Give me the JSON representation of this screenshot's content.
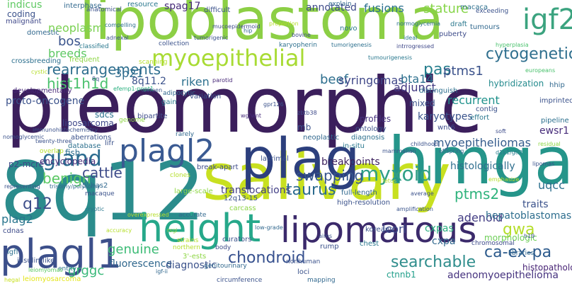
{
  "cloud": {
    "words": [
      {
        "text": "pleomorphic",
        "color": "#3b1f5c"
      },
      {
        "text": "lipoblastoma",
        "color": "#8ccf45"
      },
      {
        "text": "8q12",
        "color": "#2b8c8c"
      },
      {
        "text": "salivary",
        "color": "#c8e020"
      },
      {
        "text": "hmga2",
        "color": "#25958a"
      },
      {
        "text": "plag",
        "color": "#2c3f7d"
      },
      {
        "text": "height",
        "color": "#26a88a"
      },
      {
        "text": "lipomatous",
        "color": "#3b2a6b"
      },
      {
        "text": "plagl1",
        "color": "#3c4f8a"
      },
      {
        "text": "myoepithelial",
        "color": "#a8db34"
      },
      {
        "text": "igf2",
        "color": "#3ba37f"
      },
      {
        "text": "plagl2",
        "color": "#3a5a92"
      },
      {
        "text": "cytogenetic",
        "color": "#2f6f8e"
      },
      {
        "text": "gland",
        "color": "#2a6a8e"
      },
      {
        "text": "myxoid",
        "color": "#2f9f86"
      },
      {
        "text": "ca-ex-pa",
        "color": "#2c5a8c"
      },
      {
        "text": "chondroid",
        "color": "#36508e"
      },
      {
        "text": "searchable",
        "color": "#2f8d8c"
      },
      {
        "text": "taurus",
        "color": "#2b6a8e"
      },
      {
        "text": "swapping",
        "color": "#35558d"
      },
      {
        "text": "gwa",
        "color": "#b5de2b"
      },
      {
        "text": "benign",
        "color": "#5ac864"
      },
      {
        "text": "rearrangements",
        "color": "#2e6e8e"
      },
      {
        "text": "hist1h1d",
        "color": "#4ac16d"
      },
      {
        "text": "bos",
        "color": "#3a548c"
      },
      {
        "text": "neoplasm",
        "color": "#7ad151"
      },
      {
        "text": "breeds",
        "color": "#5dc863"
      },
      {
        "text": "spag17",
        "color": "#472a7a"
      },
      {
        "text": "pas",
        "color": "#277f8e"
      },
      {
        "text": "ptms1",
        "color": "#3b528b"
      },
      {
        "text": "stature",
        "color": "#86d549"
      },
      {
        "text": "fusions",
        "color": "#2c718e"
      },
      {
        "text": "annotated",
        "color": "#3e4a89"
      },
      {
        "text": "indicus",
        "color": "#5ec962"
      },
      {
        "text": "riken",
        "color": "#2d708e"
      },
      {
        "text": "8q11.2",
        "color": "#3b528b"
      },
      {
        "text": "3p21",
        "color": "#2f6b8e"
      },
      {
        "text": "beef",
        "color": "#2e6f8e"
      },
      {
        "text": "syringomas",
        "color": "#3f4788"
      },
      {
        "text": "bta14",
        "color": "#2d708e"
      },
      {
        "text": "adjunct",
        "color": "#443a83"
      },
      {
        "text": "recurrent",
        "color": "#20928c"
      },
      {
        "text": "myoepitheliomas",
        "color": "#365d8d"
      },
      {
        "text": "cattle",
        "color": "#3e4c8a"
      },
      {
        "text": "q12",
        "color": "#3d4e8a"
      },
      {
        "text": "plag2",
        "color": "#2a768e"
      },
      {
        "text": "grggc",
        "color": "#37b878"
      },
      {
        "text": "genuine",
        "color": "#3bbb75"
      },
      {
        "text": "fluorescence",
        "color": "#31688e"
      },
      {
        "text": "diagnostic",
        "color": "#3b528b"
      },
      {
        "text": "ptms2",
        "color": "#2eb37c"
      },
      {
        "text": "uqcc",
        "color": "#2d708e"
      },
      {
        "text": "traits",
        "color": "#3b528b"
      },
      {
        "text": "adenoid",
        "color": "#433d84"
      },
      {
        "text": "cxpas",
        "color": "#29af7f"
      },
      {
        "text": "cxpa",
        "color": "#31688e"
      },
      {
        "text": "adenomyoepithelioma",
        "color": "#46337f"
      },
      {
        "text": "ctnnb1",
        "color": "#1f9e89"
      },
      {
        "text": "lcorl",
        "color": "#3e4c8a"
      },
      {
        "text": "breakpoints",
        "color": "#3b1f5c"
      },
      {
        "text": "translocations",
        "color": "#423f85"
      },
      {
        "text": "histologically",
        "color": "#2e6e8e"
      },
      {
        "text": "ewsr1",
        "color": "#472c7a"
      },
      {
        "text": "mixed",
        "color": "#3b528b"
      },
      {
        "text": "profiles",
        "color": "#46327e"
      },
      {
        "text": "karyotypes",
        "color": "#3a548c"
      },
      {
        "text": "sdcs",
        "color": "#2c728e"
      },
      {
        "text": "fish",
        "color": "#2e6e8e"
      },
      {
        "text": "liposarcoma",
        "color": "#3f4889"
      },
      {
        "text": "proto-oncogene",
        "color": "#3b528b"
      },
      {
        "text": "p2-mcre",
        "color": "#3e4989"
      },
      {
        "text": "hyperplasia",
        "color": "#4ac16d"
      },
      {
        "text": "hybridization",
        "color": "#238a8d"
      },
      {
        "text": "europeans",
        "color": "#4ac16d"
      },
      {
        "text": "intrrogressed",
        "color": "#3f4889"
      },
      {
        "text": "d1k1/gtl2",
        "color": "#287c8e"
      },
      {
        "text": "lipomas",
        "color": "#3a548c"
      },
      {
        "text": "average",
        "color": "#3b528b"
      },
      {
        "text": "zbtb38",
        "color": "#3e4a89"
      },
      {
        "text": "gpr126",
        "color": "#3b528b"
      },
      {
        "text": "8q",
        "color": "#3b528b"
      },
      {
        "text": "parotid",
        "color": "#472878"
      },
      {
        "text": "sixteen",
        "color": "#39558c"
      },
      {
        "text": "efemp1-pnpt1",
        "color": "#2ab07f"
      },
      {
        "text": "wg/wnt",
        "color": "#472c7a"
      },
      {
        "text": "childhood",
        "color": "#3b528b"
      },
      {
        "text": "hepatoblastomas",
        "color": "#2e6e8e"
      },
      {
        "text": "amplification",
        "color": "#3a548c"
      },
      {
        "text": "morphologic",
        "color": "#6ece58"
      },
      {
        "text": "histopathologic landmarks",
        "color": "#482475"
      },
      {
        "text": "cryptic",
        "color": "#2a788e"
      },
      {
        "text": "coding",
        "color": "#3b528b"
      },
      {
        "text": "malignant",
        "color": "#3f4889"
      },
      {
        "text": "domestic",
        "color": "#31688e"
      },
      {
        "text": "crossbreeding",
        "color": "#2d708e"
      },
      {
        "text": "developmentally",
        "color": "#472878"
      },
      {
        "text": "overexpressed",
        "color": "#b5de2b"
      },
      {
        "text": "leiomyomas",
        "color": "#5cc863"
      },
      {
        "text": "encyclopedia",
        "color": "#472c7a"
      },
      {
        "text": "cdnas",
        "color": "#3e4c8a"
      },
      {
        "text": "igf-ii",
        "color": "#31688e"
      },
      {
        "text": "igfl",
        "color": "#2d708e"
      },
      {
        "text": "insulin-like",
        "color": "#3b528b"
      },
      {
        "text": "leiomyosarcoma",
        "color": "#e3e418"
      },
      {
        "text": "tumorigenesis",
        "color": "#2d708e"
      },
      {
        "text": "tumourigenesis",
        "color": "#2a788e"
      },
      {
        "text": "h19",
        "color": "#3b528b"
      },
      {
        "text": "soft",
        "color": "#3e4c8a"
      },
      {
        "text": "interphase",
        "color": "#31688e"
      },
      {
        "text": "anatomical",
        "color": "#3b528b"
      },
      {
        "text": "resource",
        "color": "#2a788e"
      },
      {
        "text": "difficult",
        "color": "#3b528b"
      },
      {
        "text": "bovine",
        "color": "#3e4c8a"
      },
      {
        "text": "classified",
        "color": "#2a788e"
      },
      {
        "text": "collection",
        "color": "#3b528b"
      },
      {
        "text": "karyopherin",
        "color": "#2d708e"
      },
      {
        "text": "explain",
        "color": "#31688e"
      },
      {
        "text": "novo",
        "color": "#2a788e"
      },
      {
        "text": "tumorigenic",
        "color": "#3b528b"
      },
      {
        "text": "macaca",
        "color": "#2d708e"
      },
      {
        "text": "exceeding",
        "color": "#3b528b"
      },
      {
        "text": "draft",
        "color": "#2a788e"
      },
      {
        "text": "puberty",
        "color": "#3e4c8a"
      },
      {
        "text": "tumours",
        "color": "#31688e"
      },
      {
        "text": "cystic",
        "color": "#b5de2b"
      },
      {
        "text": "immunohistochemistry",
        "color": "#3b528b"
      },
      {
        "text": "frequent",
        "color": "#8ed645"
      },
      {
        "text": "distinguish",
        "color": "#2d708e"
      },
      {
        "text": "scanning",
        "color": "#b5de2b"
      },
      {
        "text": "adipocytic",
        "color": "#31688e"
      },
      {
        "text": "variation",
        "color": "#3b528b"
      },
      {
        "text": "gain",
        "color": "#2a788e"
      },
      {
        "text": "bipartite",
        "color": "#3e4c8a"
      },
      {
        "text": "genome",
        "color": "#8ed645"
      },
      {
        "text": "twenty-three",
        "color": "#3b528b"
      },
      {
        "text": "trisomy/polysomy",
        "color": "#31688e"
      },
      {
        "text": "ontology",
        "color": "#3b528b"
      },
      {
        "text": "diagnosis",
        "color": "#2d708e"
      },
      {
        "text": "in-situ",
        "color": "#2a788e"
      },
      {
        "text": "neoplastic",
        "color": "#31688e"
      },
      {
        "text": "hegal",
        "color": "#c8e020"
      },
      {
        "text": "accuracy",
        "color": "#b5de2b"
      },
      {
        "text": "imprinted",
        "color": "#3b528b"
      },
      {
        "text": "pipeline",
        "color": "#2d708e"
      },
      {
        "text": "hhip",
        "color": "#31688e"
      },
      {
        "text": "contig",
        "color": "#3b528b"
      },
      {
        "text": "effort",
        "color": "#2a788e"
      },
      {
        "text": "wnt6",
        "color": "#3e4c8a"
      },
      {
        "text": "low-grade",
        "color": "#31688e"
      },
      {
        "text": "mb",
        "color": "#3b528b"
      },
      {
        "text": "rarely",
        "color": "#31688e"
      },
      {
        "text": "aberrations",
        "color": "#3b528b"
      },
      {
        "text": "database",
        "color": "#2d708e"
      },
      {
        "text": "lifr",
        "color": "#3b528b"
      },
      {
        "text": "overlap",
        "color": "#b5de2b"
      },
      {
        "text": "ideal",
        "color": "#2a788e"
      },
      {
        "text": "lacrimal",
        "color": "#3b528b"
      },
      {
        "text": "break-apart",
        "color": "#3e4c8a"
      },
      {
        "text": "clones",
        "color": "#b5de2b"
      },
      {
        "text": "5' has2",
        "color": "#31688e"
      },
      {
        "text": "macaque",
        "color": "#3b528b"
      },
      {
        "text": "normoglycemia",
        "color": "#2d708e"
      },
      {
        "text": "large-scale",
        "color": "#8ed645"
      },
      {
        "text": "12q13-15",
        "color": "#3b528b"
      },
      {
        "text": "carcass",
        "color": "#8ed645"
      },
      {
        "text": "accurate",
        "color": "#31688e"
      },
      {
        "text": "adnexal",
        "color": "#3b528b"
      },
      {
        "text": "compelling",
        "color": "#2d708e"
      },
      {
        "text": "high-resolution",
        "color": "#3b528b"
      },
      {
        "text": "full-length",
        "color": "#31688e"
      },
      {
        "text": "koreans",
        "color": "#3b528b"
      },
      {
        "text": "chest",
        "color": "#2a788e"
      },
      {
        "text": "rump",
        "color": "#3b528b"
      },
      {
        "text": "chromosomal",
        "color": "#3e4c8a"
      },
      {
        "text": "libraries",
        "color": "#31688e"
      },
      {
        "text": "curators",
        "color": "#3b528b"
      },
      {
        "text": "body",
        "color": "#3e4c8a"
      },
      {
        "text": "strains",
        "color": "#b5de2b"
      },
      {
        "text": "northern",
        "color": "#b5de2b"
      },
      {
        "text": "3'-ests",
        "color": "#8ed645"
      },
      {
        "text": "genitourinary",
        "color": "#31688e"
      },
      {
        "text": "loci",
        "color": "#3b528b"
      },
      {
        "text": "entity",
        "color": "#2d708e"
      },
      {
        "text": "circumference",
        "color": "#3b528b"
      },
      {
        "text": "mapping",
        "color": "#31688e"
      },
      {
        "text": "nonhuman",
        "color": "#3b528b"
      },
      {
        "text": "mucoepidermoid",
        "color": "#3e4c8a"
      },
      {
        "text": "hip",
        "color": "#31688e"
      },
      {
        "text": "proportion",
        "color": "#b5de2b"
      },
      {
        "text": "offspring",
        "color": "#31688e"
      },
      {
        "text": "emphasize",
        "color": "#b5de2b"
      },
      {
        "text": "nomoglycemic",
        "color": "#3b528b"
      },
      {
        "text": "representing",
        "color": "#3b528b"
      },
      {
        "text": "residual",
        "color": "#8ed645"
      },
      {
        "text": "mammalian",
        "color": "#3b528b"
      },
      {
        "text": "fetus",
        "color": "#b5de2b"
      },
      {
        "text": "rsgi",
        "color": "#8ed645"
      },
      {
        "text": "aims",
        "color": "#3b528b"
      }
    ]
  }
}
